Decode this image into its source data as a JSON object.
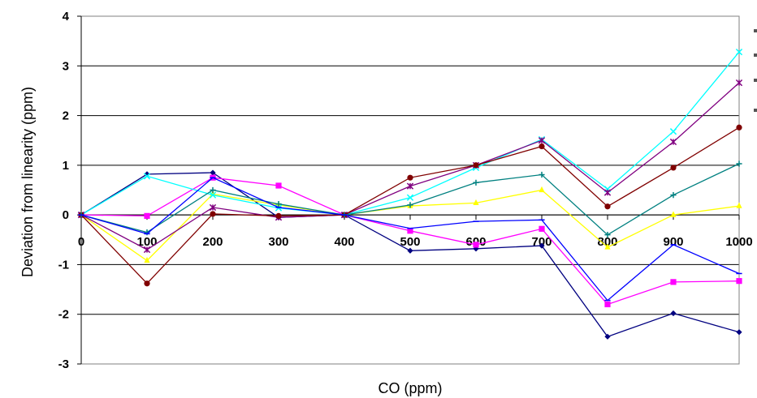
{
  "chart_data": {
    "type": "line",
    "title": "",
    "xlabel": "CO (ppm)",
    "ylabel": "Deviation from linearity (ppm)",
    "xlim": [
      0,
      1000
    ],
    "ylim": [
      -3,
      4
    ],
    "x": [
      0,
      100,
      200,
      300,
      400,
      500,
      600,
      700,
      800,
      900,
      1000
    ],
    "x_ticks": [
      "0",
      "100",
      "200",
      "300",
      "400",
      "500",
      "600",
      "700",
      "800",
      "900",
      "1000"
    ],
    "y_ticks": [
      "4",
      "3",
      "2",
      "1",
      "0",
      "-1",
      "-2",
      "-3"
    ],
    "grid": "horizontal",
    "series": [
      {
        "color": "#000080",
        "marker": "diamond",
        "values": [
          0,
          0.82,
          0.85,
          -0.05,
          0,
          -0.72,
          -0.68,
          -0.62,
          -2.45,
          -1.98,
          -2.36
        ]
      },
      {
        "color": "#ff00ff",
        "marker": "square",
        "values": [
          0,
          -0.02,
          0.75,
          0.59,
          0,
          -0.32,
          -0.6,
          -0.28,
          -1.8,
          -1.35,
          -1.33
        ]
      },
      {
        "color": "#ffff00",
        "marker": "triangle",
        "values": [
          0,
          -0.92,
          0.42,
          0.2,
          0,
          0.18,
          0.24,
          0.5,
          -0.65,
          0,
          0.18
        ]
      },
      {
        "color": "#00ffff",
        "marker": "x",
        "values": [
          0,
          0.78,
          0.4,
          0.14,
          0,
          0.35,
          0.95,
          1.52,
          0.52,
          1.68,
          3.28
        ]
      },
      {
        "color": "#800080",
        "marker": "star",
        "values": [
          0,
          -0.7,
          0.15,
          -0.05,
          0,
          0.58,
          1.0,
          1.5,
          0.45,
          1.47,
          2.66
        ]
      },
      {
        "color": "#800000",
        "marker": "circle",
        "values": [
          0,
          -1.38,
          0.02,
          -0.02,
          0,
          0.75,
          1.0,
          1.38,
          0.17,
          0.95,
          1.76
        ]
      },
      {
        "color": "#008080",
        "marker": "plus",
        "values": [
          0,
          -0.35,
          0.5,
          0.22,
          0,
          0.2,
          0.65,
          0.81,
          -0.4,
          0.4,
          1.03
        ]
      },
      {
        "color": "#0000ff",
        "marker": "dash",
        "values": [
          0,
          -0.38,
          0.75,
          0.15,
          0,
          -0.27,
          -0.13,
          -0.1,
          -1.72,
          -0.6,
          -1.18
        ]
      }
    ]
  }
}
